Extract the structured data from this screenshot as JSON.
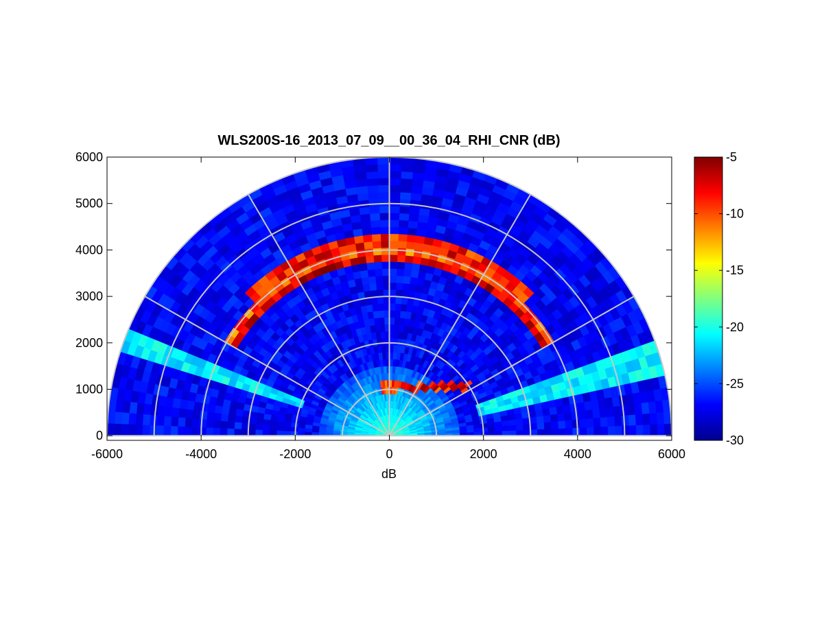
{
  "chart_data": {
    "type": "heatmap",
    "projection": "polar-rhi",
    "title": "WLS200S-16_2013_07_09__00_36_04_RHI_CNR (dB)",
    "xlabel": "dB",
    "ylabel": "",
    "xlim": [
      -6000,
      6000
    ],
    "ylim": [
      -100,
      6000
    ],
    "xticks": [
      -6000,
      -4000,
      -2000,
      0,
      2000,
      4000,
      6000
    ],
    "yticks": [
      0,
      1000,
      2000,
      3000,
      4000,
      5000,
      6000
    ],
    "max_range": 6000,
    "range_rings": [
      1000,
      2000,
      3000,
      4000,
      5000,
      6000
    ],
    "spoke_angles_deg": [
      0,
      30,
      60,
      90,
      120,
      150,
      180
    ],
    "elevation_coverage_deg": [
      0,
      180
    ],
    "colorbar": {
      "colormap": "jet",
      "clim": [
        -30,
        -5
      ],
      "ticks": [
        -30,
        -25,
        -20,
        -15,
        -10,
        -5
      ]
    },
    "features": [
      {
        "name": "aerosol layer",
        "range_m": 4200,
        "elevation_deg": [
          45,
          135
        ],
        "cnr_db": -6
      },
      {
        "name": "aerosol layer",
        "range_m": 3850,
        "elevation_deg": [
          30,
          150
        ],
        "cnr_db": -6
      },
      {
        "name": "low layer",
        "altitude_m": 1050,
        "x_m": [
          -200,
          1700
        ],
        "cnr_db": -6
      },
      {
        "name": "bright sector",
        "elevation_deg": [
          12,
          20
        ],
        "range_m": [
          2000,
          6000
        ],
        "cnr_db": -21
      },
      {
        "name": "bright sector",
        "elevation_deg": [
          157,
          163
        ],
        "range_m": [
          2000,
          6000
        ],
        "cnr_db": -21
      },
      {
        "name": "near field",
        "range_m": [
          0,
          1500
        ],
        "cnr_db": -19
      },
      {
        "name": "background",
        "cnr_db": -27
      }
    ]
  }
}
